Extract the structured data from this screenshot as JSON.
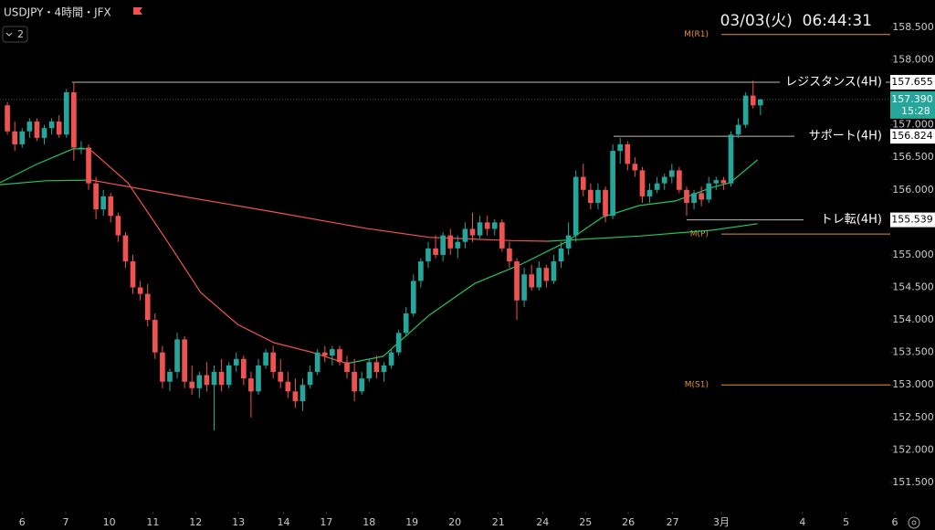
{
  "header": {
    "symbol": "USDJPY・4時間・JFX",
    "indicators": "2",
    "clock": "03/03(火)  06:44:31"
  },
  "chart_data": {
    "type": "candlestick",
    "up_color": "#26a69a",
    "down_color": "#ef5350",
    "xlim": [
      -1,
      120.2
    ],
    "ylim": [
      151.05,
      158.92
    ],
    "xticks": [
      {
        "value": 2.0,
        "label": "6"
      },
      {
        "value": 7.9,
        "label": "7"
      },
      {
        "value": 13.8,
        "label": "10"
      },
      {
        "value": 19.7,
        "label": "11"
      },
      {
        "value": 25.5,
        "label": "12"
      },
      {
        "value": 31.3,
        "label": "13"
      },
      {
        "value": 37.4,
        "label": "14"
      },
      {
        "value": 43.2,
        "label": "17"
      },
      {
        "value": 49.0,
        "label": "18"
      },
      {
        "value": 54.8,
        "label": "19"
      },
      {
        "value": 60.6,
        "label": "20"
      },
      {
        "value": 66.5,
        "label": "21"
      },
      {
        "value": 72.5,
        "label": "24"
      },
      {
        "value": 78.3,
        "label": "25"
      },
      {
        "value": 84.1,
        "label": "26"
      },
      {
        "value": 90.1,
        "label": "27"
      },
      {
        "value": 96.7,
        "label": "3月"
      },
      {
        "value": 107.7,
        "label": "4"
      },
      {
        "value": 113.6,
        "label": "5"
      },
      {
        "value": 120.2,
        "label": "6"
      }
    ],
    "yticks": [
      {
        "value": 158.5,
        "label": "158.500"
      },
      {
        "value": 158,
        "label": "158.000"
      },
      {
        "value": 157,
        "label": "157.000"
      },
      {
        "value": 156.5,
        "label": "156.500"
      },
      {
        "value": 156,
        "label": "156.000"
      },
      {
        "value": 155,
        "label": "155.000"
      },
      {
        "value": 154.5,
        "label": "154.500"
      },
      {
        "value": 154,
        "label": "154.000"
      },
      {
        "value": 153.5,
        "label": "153.500"
      },
      {
        "value": 153,
        "label": "153.000"
      },
      {
        "value": 152.5,
        "label": "152.500"
      },
      {
        "value": 152,
        "label": "152.000"
      },
      {
        "value": 151.5,
        "label": "151.500"
      }
    ],
    "candles": [
      [
        157.3,
        157.35,
        156.85,
        156.9
      ],
      [
        156.9,
        157.05,
        156.6,
        156.7
      ],
      [
        156.7,
        156.95,
        156.65,
        156.9
      ],
      [
        156.9,
        157.1,
        156.8,
        157.05
      ],
      [
        157.05,
        157.1,
        156.75,
        156.8
      ],
      [
        156.8,
        157.0,
        156.7,
        156.95
      ],
      [
        156.95,
        157.1,
        156.85,
        157.05
      ],
      [
        157.05,
        157.15,
        156.8,
        156.85
      ],
      [
        156.85,
        157.55,
        156.8,
        157.5
      ],
      [
        157.5,
        157.66,
        156.45,
        156.65
      ],
      [
        156.65,
        156.75,
        156.55,
        156.65
      ],
      [
        156.65,
        156.7,
        156.0,
        156.1
      ],
      [
        156.1,
        156.2,
        155.55,
        155.7
      ],
      [
        155.7,
        156.0,
        155.6,
        155.9
      ],
      [
        155.9,
        155.95,
        155.5,
        155.6
      ],
      [
        155.6,
        155.65,
        155.2,
        155.3
      ],
      [
        155.3,
        155.35,
        154.8,
        154.9
      ],
      [
        154.9,
        155.0,
        154.4,
        154.5
      ],
      [
        154.5,
        154.6,
        154.3,
        154.4
      ],
      [
        154.4,
        154.55,
        153.9,
        154.0
      ],
      [
        154.0,
        154.1,
        153.4,
        153.5
      ],
      [
        153.5,
        153.6,
        152.95,
        153.05
      ],
      [
        153.05,
        153.25,
        152.9,
        153.2
      ],
      [
        153.2,
        153.8,
        153.1,
        153.7
      ],
      [
        153.7,
        153.75,
        152.95,
        153.05
      ],
      [
        153.05,
        153.3,
        152.85,
        152.95
      ],
      [
        152.95,
        153.2,
        152.8,
        153.15
      ],
      [
        153.15,
        153.35,
        152.9,
        153.0
      ],
      [
        153.0,
        153.3,
        152.3,
        153.2
      ],
      [
        153.2,
        153.4,
        152.9,
        153.0
      ],
      [
        153.0,
        153.35,
        152.95,
        153.3
      ],
      [
        153.3,
        153.5,
        153.2,
        153.4
      ],
      [
        153.4,
        153.45,
        153.0,
        153.1
      ],
      [
        153.1,
        153.2,
        152.5,
        152.9
      ],
      [
        152.9,
        153.4,
        152.85,
        153.3
      ],
      [
        153.3,
        153.55,
        153.25,
        153.5
      ],
      [
        153.5,
        153.6,
        153.1,
        153.2
      ],
      [
        153.2,
        153.4,
        152.95,
        153.05
      ],
      [
        153.05,
        153.2,
        152.8,
        152.9
      ],
      [
        152.9,
        153.1,
        152.65,
        152.75
      ],
      [
        152.75,
        153.1,
        152.6,
        153.0
      ],
      [
        153.0,
        153.3,
        152.95,
        153.2
      ],
      [
        153.2,
        153.55,
        153.15,
        153.5
      ],
      [
        153.5,
        153.6,
        153.35,
        153.45
      ],
      [
        153.45,
        153.6,
        153.3,
        153.55
      ],
      [
        153.55,
        153.6,
        153.3,
        153.35
      ],
      [
        153.35,
        153.45,
        153.1,
        153.2
      ],
      [
        153.2,
        153.4,
        152.75,
        152.9
      ],
      [
        152.9,
        153.2,
        152.85,
        153.1
      ],
      [
        153.1,
        153.4,
        153.05,
        153.35
      ],
      [
        153.35,
        153.45,
        153.1,
        153.2
      ],
      [
        153.2,
        153.35,
        153.05,
        153.3
      ],
      [
        153.3,
        153.55,
        153.25,
        153.5
      ],
      [
        153.5,
        153.85,
        153.45,
        153.8
      ],
      [
        153.8,
        154.2,
        153.75,
        154.1
      ],
      [
        154.1,
        154.7,
        154.05,
        154.6
      ],
      [
        154.6,
        154.95,
        154.5,
        154.9
      ],
      [
        154.9,
        155.2,
        154.8,
        155.1
      ],
      [
        155.1,
        155.3,
        154.95,
        155.0
      ],
      [
        155.0,
        155.35,
        154.9,
        155.3
      ],
      [
        155.3,
        155.4,
        155.0,
        155.1
      ],
      [
        155.1,
        155.3,
        154.95,
        155.2
      ],
      [
        155.2,
        155.5,
        155.1,
        155.4
      ],
      [
        155.4,
        155.65,
        155.2,
        155.3
      ],
      [
        155.3,
        155.6,
        155.25,
        155.5
      ],
      [
        155.5,
        155.6,
        155.3,
        155.4
      ],
      [
        155.4,
        155.55,
        155.3,
        155.5
      ],
      [
        155.5,
        155.55,
        155.05,
        155.1
      ],
      [
        155.1,
        155.2,
        154.8,
        154.9
      ],
      [
        154.9,
        154.95,
        154.0,
        154.3
      ],
      [
        154.3,
        154.8,
        154.2,
        154.7
      ],
      [
        154.7,
        154.85,
        154.45,
        154.5
      ],
      [
        154.5,
        154.9,
        154.45,
        154.8
      ],
      [
        154.8,
        154.85,
        154.5,
        154.6
      ],
      [
        154.6,
        155.0,
        154.55,
        154.9
      ],
      [
        154.9,
        155.2,
        154.8,
        155.1
      ],
      [
        155.1,
        155.5,
        155.0,
        155.3
      ],
      [
        155.3,
        156.3,
        155.2,
        156.2
      ],
      [
        156.2,
        156.4,
        155.9,
        156.0
      ],
      [
        156.0,
        156.1,
        155.7,
        155.8
      ],
      [
        155.8,
        156.1,
        155.7,
        156.0
      ],
      [
        156.0,
        156.05,
        155.5,
        155.6
      ],
      [
        155.6,
        156.7,
        155.55,
        156.6
      ],
      [
        156.6,
        156.8,
        156.4,
        156.7
      ],
      [
        156.7,
        156.75,
        156.3,
        156.4
      ],
      [
        156.4,
        156.5,
        156.2,
        156.3
      ],
      [
        156.3,
        156.35,
        155.8,
        155.9
      ],
      [
        155.9,
        156.1,
        155.8,
        156.0
      ],
      [
        156.0,
        156.2,
        155.95,
        156.1
      ],
      [
        156.1,
        156.25,
        156.0,
        156.2
      ],
      [
        156.2,
        156.4,
        156.1,
        156.3
      ],
      [
        156.3,
        156.35,
        155.95,
        156.0
      ],
      [
        156.0,
        156.05,
        155.6,
        155.8
      ],
      [
        155.8,
        156.0,
        155.7,
        155.95
      ],
      [
        155.95,
        156.05,
        155.75,
        155.85
      ],
      [
        155.85,
        156.2,
        155.8,
        156.1
      ],
      [
        156.1,
        156.2,
        156.0,
        156.15
      ],
      [
        156.15,
        156.2,
        156.0,
        156.1
      ],
      [
        156.1,
        156.9,
        156.05,
        156.85
      ],
      [
        156.85,
        157.1,
        156.8,
        157.0
      ],
      [
        157.0,
        157.5,
        156.95,
        157.45
      ],
      [
        157.45,
        157.68,
        157.25,
        157.3
      ],
      [
        157.3,
        157.4,
        157.15,
        157.39
      ]
    ],
    "lines": [
      {
        "color": "#22c55e",
        "x": [
          -1,
          3.9,
          8.9,
          11.4
        ],
        "values": [
          156.11,
          156.39,
          156.63,
          156.63
        ]
      },
      {
        "color": "#ef5350",
        "x": [
          11.4,
          16.3,
          21.3,
          26.2,
          31.2,
          36.1,
          41.0,
          46.0
        ],
        "values": [
          156.6,
          156.11,
          155.27,
          154.42,
          153.93,
          153.65,
          153.51,
          153.33
        ]
      },
      {
        "color": "#22c55e",
        "x": [
          46.0,
          50.9,
          57.1,
          63.3,
          69.5,
          75.7,
          80.6,
          85.6,
          90.5,
          95.5,
          97.9,
          101.6
        ],
        "values": [
          153.33,
          153.44,
          154.07,
          154.56,
          154.85,
          155.2,
          155.58,
          155.76,
          155.83,
          156.04,
          156.11,
          156.46
        ]
      },
      {
        "color": "#22c55e",
        "x": [
          -1,
          5.2,
          11.4
        ],
        "values": [
          156.08,
          156.14,
          156.15
        ]
      },
      {
        "color": "#ef5350",
        "x": [
          11.4,
          23.7,
          36.1,
          48.5,
          57.1,
          68.3,
          73.2
        ],
        "values": [
          156.15,
          155.9,
          155.66,
          155.41,
          155.27,
          155.22,
          155.21
        ]
      },
      {
        "color": "#22c55e",
        "x": [
          73.2,
          85.6,
          95.5,
          101.6
        ],
        "values": [
          155.21,
          155.29,
          155.38,
          155.48
        ]
      }
    ],
    "levels": [
      {
        "label": "レジスタンス(4H)",
        "value": 157.655
      },
      {
        "label": "サポート(4H)",
        "value": 156.824
      },
      {
        "label": "トレ転(4H)",
        "value": 155.539
      }
    ],
    "pivots": [
      {
        "label": "M(R1)",
        "value": 158.39
      },
      {
        "label": "M(P)",
        "value": 155.32
      },
      {
        "label": "M(S1)",
        "value": 153.0
      }
    ],
    "last_price": {
      "value": 157.39,
      "value_label": "157.390",
      "countdown": "15:28"
    }
  }
}
